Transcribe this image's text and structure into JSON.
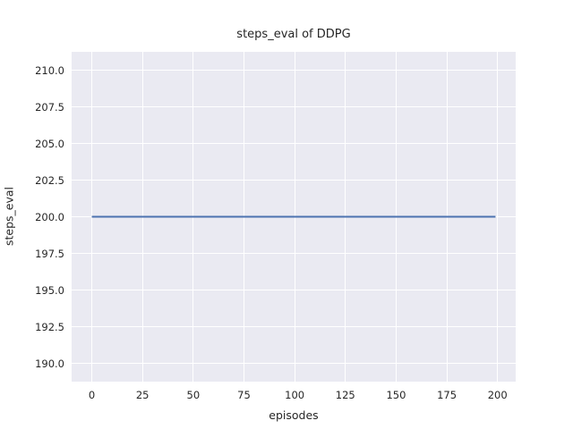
{
  "chart_data": {
    "type": "line",
    "title": "steps_eval of DDPG",
    "xlabel": "episodes",
    "ylabel": "steps_eval",
    "xlim": [
      -9.95,
      208.95
    ],
    "ylim": [
      188.75,
      211.25
    ],
    "xticks": [
      0,
      25,
      50,
      75,
      100,
      125,
      150,
      175,
      200
    ],
    "xtick_labels": [
      "0",
      "25",
      "50",
      "75",
      "100",
      "125",
      "150",
      "175",
      "200"
    ],
    "yticks": [
      190.0,
      192.5,
      195.0,
      197.5,
      200.0,
      202.5,
      205.0,
      207.5,
      210.0
    ],
    "ytick_labels": [
      "190.0",
      "192.5",
      "195.0",
      "197.5",
      "200.0",
      "202.5",
      "205.0",
      "207.5",
      "210.0"
    ],
    "grid": true,
    "legend_position": "none",
    "series": [
      {
        "name": "steps_eval",
        "color": "#4C72B0",
        "x": [
          0,
          199
        ],
        "y": [
          200,
          200
        ]
      }
    ],
    "colors": {
      "plot_background": "#EAEAF2",
      "figure_background": "#FFFFFF",
      "grid_line": "#FFFFFF",
      "text": "#262626",
      "line_accent": "#4C72B0"
    }
  }
}
